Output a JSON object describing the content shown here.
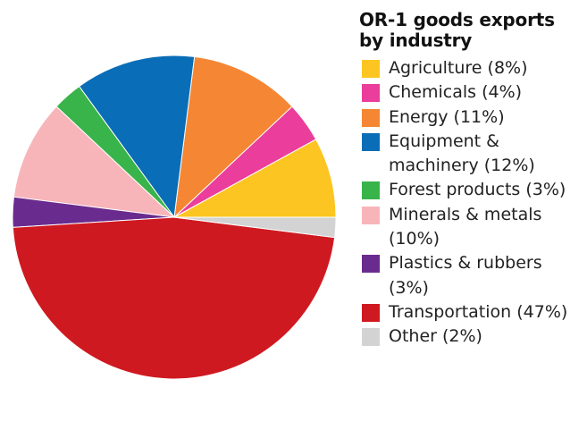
{
  "chart_data": {
    "type": "pie",
    "title": "OR-1 goods exports by industry",
    "slices": [
      {
        "label": "Agriculture (8%)",
        "value": 8,
        "color": "#FDC521"
      },
      {
        "label": "Chemicals (4%)",
        "value": 4,
        "color": "#EB3D9B"
      },
      {
        "label": "Energy (11%)",
        "value": 11,
        "color": "#F58634"
      },
      {
        "label": "Equipment & machinery (12%)",
        "value": 12,
        "color": "#0A6DB7"
      },
      {
        "label": "Forest products (3%)",
        "value": 3,
        "color": "#38B44A"
      },
      {
        "label": "Minerals & metals (10%)",
        "value": 10,
        "color": "#F7B5BA"
      },
      {
        "label": "Plastics & rubbers (3%)",
        "value": 3,
        "color": "#6A2B8E"
      },
      {
        "label": "Transportation (47%)",
        "value": 47,
        "color": "#CF1920"
      },
      {
        "label": "Other (2%)",
        "value": 2,
        "color": "#D3D3D3"
      }
    ],
    "legend": "right"
  }
}
